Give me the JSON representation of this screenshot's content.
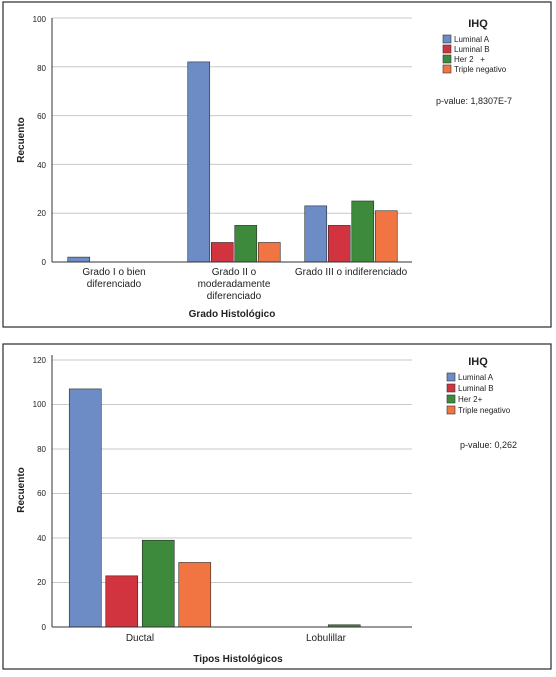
{
  "charts": {
    "0": {
      "legend": {
        "title": "IHQ",
        "items": [
          "Luminal A",
          "Luminal B",
          "Her 2   +",
          "Triple negativo"
        ]
      },
      "note": "p-value: 1,8307E-7",
      "ylabel": "Recuento",
      "xlabel": "Grado Histológico",
      "yticks": [
        "0",
        "20",
        "40",
        "60",
        "80",
        "100"
      ],
      "categories": {
        "0": [
          "Grado I o bien",
          "diferenciado"
        ],
        "1": [
          "Grado II o",
          "moderadamente",
          "diferenciado"
        ],
        "2": [
          "Grado III o indiferenciado"
        ]
      }
    },
    "1": {
      "legend": {
        "title": "IHQ",
        "items": [
          "Luminal A",
          "Luminal B",
          "Her 2+",
          "Triple negativo"
        ]
      },
      "note": "p-value: 0,262",
      "ylabel": "Recuento",
      "xlabel": "Tipos Histológicos",
      "yticks": [
        "0",
        "20",
        "40",
        "60",
        "80",
        "100",
        "120"
      ],
      "categories": {
        "0": [
          "Ductal"
        ],
        "1": [
          "Lobulillar"
        ]
      }
    }
  },
  "colors": {
    "luminal_a": "#6d8cc6",
    "luminal_b": "#d2343f",
    "her2": "#3e8a3c",
    "triple_negativo": "#f07542",
    "grid": "#c8c8c8",
    "frame": "#333333"
  },
  "chart_data": [
    {
      "type": "bar",
      "categories": [
        "Grado I o bien diferenciado",
        "Grado II o moderadamente diferenciado",
        "Grado III o indiferenciado"
      ],
      "series": [
        {
          "name": "Luminal A",
          "values": [
            2,
            82,
            23
          ]
        },
        {
          "name": "Luminal B",
          "values": [
            0,
            8,
            15
          ]
        },
        {
          "name": "Her 2   +",
          "values": [
            0,
            15,
            25
          ]
        },
        {
          "name": "Triple negativo",
          "values": [
            0,
            8,
            21
          ]
        }
      ],
      "xlabel": "Grado Histológico",
      "ylabel": "Recuento",
      "ylim": [
        0,
        100
      ],
      "legend_title": "IHQ",
      "legend_position": "right",
      "annotation": "p-value: 1,8307E-7",
      "grid": true
    },
    {
      "type": "bar",
      "categories": [
        "Ductal",
        "Lobulillar"
      ],
      "series": [
        {
          "name": "Luminal A",
          "values": [
            107,
            0
          ]
        },
        {
          "name": "Luminal B",
          "values": [
            23,
            0
          ]
        },
        {
          "name": "Her 2+",
          "values": [
            39,
            1
          ]
        },
        {
          "name": "Triple negativo",
          "values": [
            29,
            0
          ]
        }
      ],
      "xlabel": "Tipos Histológicos",
      "ylabel": "Recuento",
      "ylim": [
        0,
        120
      ],
      "legend_title": "IHQ",
      "legend_position": "right",
      "annotation": "p-value: 0,262",
      "grid": true
    }
  ]
}
